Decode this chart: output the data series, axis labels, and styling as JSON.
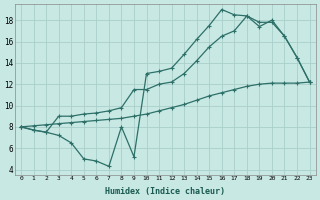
{
  "xlabel": "Humidex (Indice chaleur)",
  "bg_color": "#c8e8e4",
  "line_color": "#2d7068",
  "grid_color": "#aacfcb",
  "xlim": [
    -0.5,
    23.5
  ],
  "ylim": [
    3.5,
    19.5
  ],
  "yticks": [
    4,
    6,
    8,
    10,
    12,
    14,
    16,
    18
  ],
  "line1_x": [
    0,
    1,
    2,
    3,
    4,
    5,
    6,
    7,
    8,
    9,
    10,
    11,
    12,
    13,
    14,
    15,
    16,
    17,
    18,
    19,
    20,
    21,
    22,
    23
  ],
  "line1_y": [
    8.0,
    7.7,
    7.5,
    7.2,
    6.5,
    5.0,
    4.8,
    4.3,
    8.0,
    5.2,
    13.0,
    13.2,
    13.5,
    14.8,
    16.2,
    17.5,
    19.0,
    18.5,
    18.4,
    17.8,
    17.8,
    16.5,
    14.5,
    12.2
  ],
  "line2_x": [
    0,
    1,
    2,
    3,
    4,
    5,
    6,
    7,
    8,
    9,
    10,
    11,
    12,
    13,
    14,
    15,
    16,
    17,
    18,
    19,
    20,
    21,
    22,
    23
  ],
  "line2_y": [
    8.0,
    7.7,
    7.5,
    9.0,
    9.0,
    9.2,
    9.3,
    9.5,
    9.8,
    11.5,
    11.5,
    12.0,
    12.2,
    13.0,
    14.2,
    15.5,
    16.5,
    17.0,
    18.4,
    17.4,
    18.0,
    16.5,
    14.5,
    12.2
  ],
  "line3_x": [
    0,
    1,
    2,
    3,
    4,
    5,
    6,
    7,
    8,
    9,
    10,
    11,
    12,
    13,
    14,
    15,
    16,
    17,
    18,
    19,
    20,
    21,
    22,
    23
  ],
  "line3_y": [
    8.0,
    8.1,
    8.2,
    8.3,
    8.4,
    8.5,
    8.6,
    8.7,
    8.8,
    9.0,
    9.2,
    9.5,
    9.8,
    10.1,
    10.5,
    10.9,
    11.2,
    11.5,
    11.8,
    12.0,
    12.1,
    12.1,
    12.1,
    12.2
  ]
}
